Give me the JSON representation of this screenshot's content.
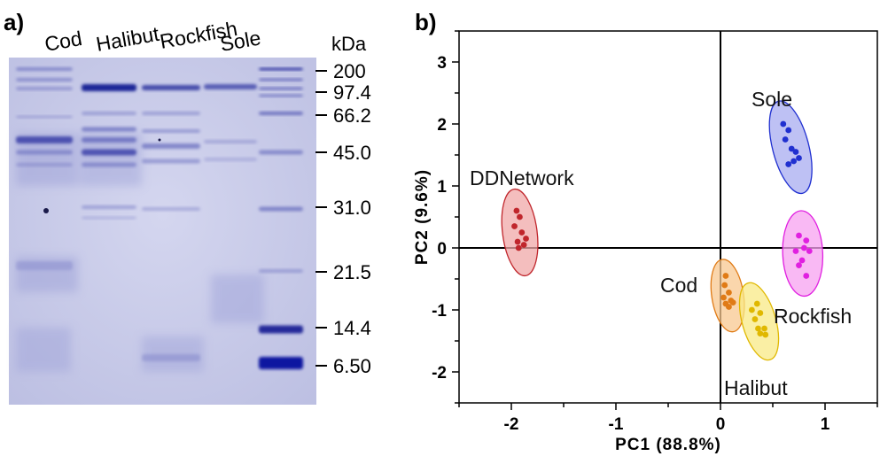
{
  "panel_a": {
    "label": "a)",
    "lanes": [
      "Cod",
      "Halibut",
      "Rockfish",
      "Sole"
    ],
    "unit": "kDa",
    "markers": [
      "200",
      "97.4",
      "66.2",
      "45.0",
      "31.0",
      "21.5",
      "14.4",
      "6.50"
    ]
  },
  "panel_b": {
    "label": "b)",
    "chart_data": {
      "type": "scatter",
      "xlabel": "PC1 (88.8%)",
      "ylabel": "PC2 (9.6%)",
      "xlim": [
        -2.5,
        1.5
      ],
      "ylim": [
        -2.5,
        3.5
      ],
      "xticks": [
        "-2",
        "-1",
        "0",
        "1"
      ],
      "yticks": [
        "-2",
        "-1",
        "0",
        "1",
        "2",
        "3"
      ],
      "zero_lines": true,
      "groups": [
        {
          "name": "DDNetwork",
          "color": "#c0262c",
          "fill": "#f0a8a8",
          "points": [
            [
              -1.95,
              0.6
            ],
            [
              -1.92,
              0.5
            ],
            [
              -1.97,
              0.35
            ],
            [
              -1.9,
              0.25
            ],
            [
              -1.86,
              0.15
            ],
            [
              -1.94,
              0.1
            ],
            [
              -1.88,
              0.05
            ],
            [
              -1.93,
              0.0
            ]
          ]
        },
        {
          "name": "Cod",
          "color": "#e07b16",
          "fill": "#f8c890",
          "points": [
            [
              0.05,
              -0.45
            ],
            [
              0.04,
              -0.6
            ],
            [
              0.08,
              -0.72
            ],
            [
              0.03,
              -0.8
            ],
            [
              0.1,
              -0.85
            ],
            [
              0.05,
              -0.9
            ],
            [
              0.12,
              -0.88
            ],
            [
              0.08,
              -0.95
            ]
          ]
        },
        {
          "name": "Halibut",
          "color": "#e0b800",
          "fill": "#f8ea86",
          "points": [
            [
              0.35,
              -0.9
            ],
            [
              0.3,
              -1.0
            ],
            [
              0.38,
              -1.05
            ],
            [
              0.33,
              -1.15
            ],
            [
              0.36,
              -1.3
            ],
            [
              0.42,
              -1.3
            ],
            [
              0.38,
              -1.38
            ],
            [
              0.43,
              -1.4
            ]
          ]
        },
        {
          "name": "Rockfish",
          "color": "#e020e0",
          "fill": "#f7a2f0",
          "points": [
            [
              0.75,
              0.2
            ],
            [
              0.82,
              0.12
            ],
            [
              0.8,
              0.0
            ],
            [
              0.72,
              -0.05
            ],
            [
              0.85,
              -0.05
            ],
            [
              0.78,
              -0.2
            ],
            [
              0.75,
              -0.28
            ],
            [
              0.82,
              -0.45
            ]
          ]
        },
        {
          "name": "Sole",
          "color": "#2030d0",
          "fill": "#a8acf0",
          "points": [
            [
              0.6,
              2.0
            ],
            [
              0.65,
              1.9
            ],
            [
              0.62,
              1.75
            ],
            [
              0.68,
              1.6
            ],
            [
              0.72,
              1.55
            ],
            [
              0.75,
              1.45
            ],
            [
              0.7,
              1.4
            ],
            [
              0.65,
              1.35
            ]
          ]
        }
      ]
    }
  }
}
